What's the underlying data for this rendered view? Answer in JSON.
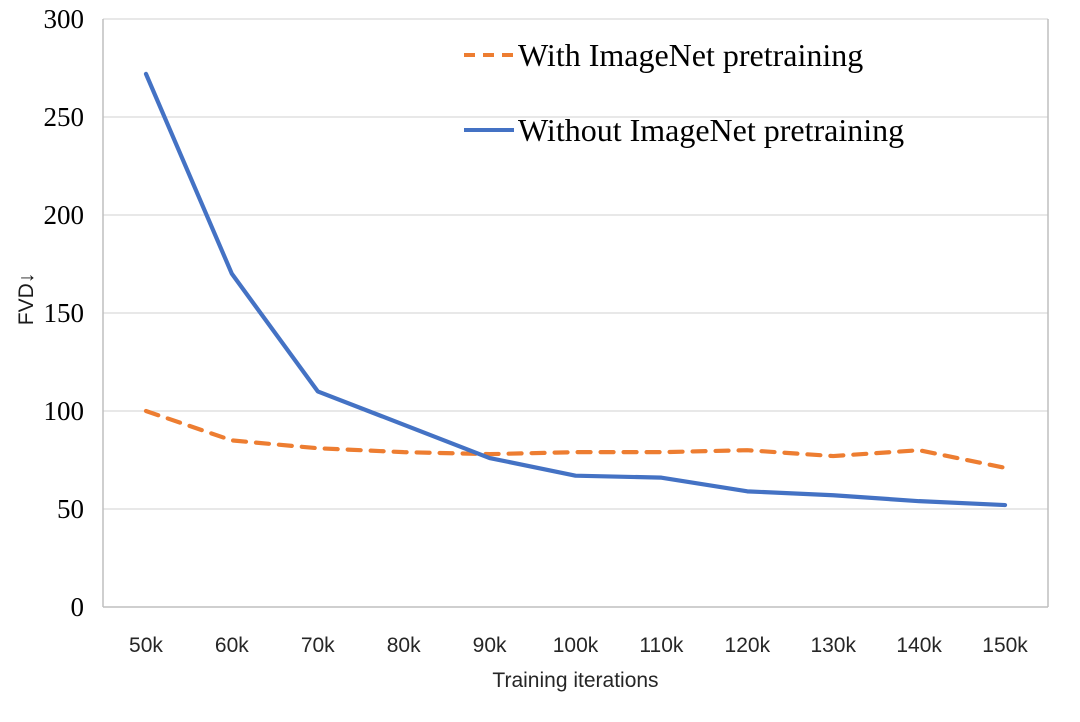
{
  "chart_data": {
    "type": "line",
    "title": "",
    "xlabel": "Training iterations",
    "ylabel": "FVD↓",
    "categories": [
      "50k",
      "60k",
      "70k",
      "80k",
      "90k",
      "100k",
      "110k",
      "120k",
      "130k",
      "140k",
      "150k"
    ],
    "series": [
      {
        "name": "With ImageNet pretraining",
        "values": [
          100,
          85,
          81,
          79,
          78,
          79,
          79,
          80,
          77,
          80,
          71
        ],
        "color": "#ED7D31",
        "line_style": "dashed"
      },
      {
        "name": "Without ImageNet pretraining",
        "values": [
          272,
          170,
          110,
          93,
          76,
          67,
          66,
          59,
          57,
          54,
          52
        ],
        "color": "#4472C4",
        "line_style": "solid"
      }
    ],
    "ylim": [
      0,
      300
    ],
    "yticks": [
      0,
      50,
      100,
      150,
      200,
      250,
      300
    ],
    "grid": true,
    "legend_position": "top-right-inside"
  },
  "theme": {
    "gridline_color": "#D9D9D9",
    "axis_color": "#BFBFBF",
    "y_tick_color": "#000000",
    "x_tick_color": "#262626"
  }
}
